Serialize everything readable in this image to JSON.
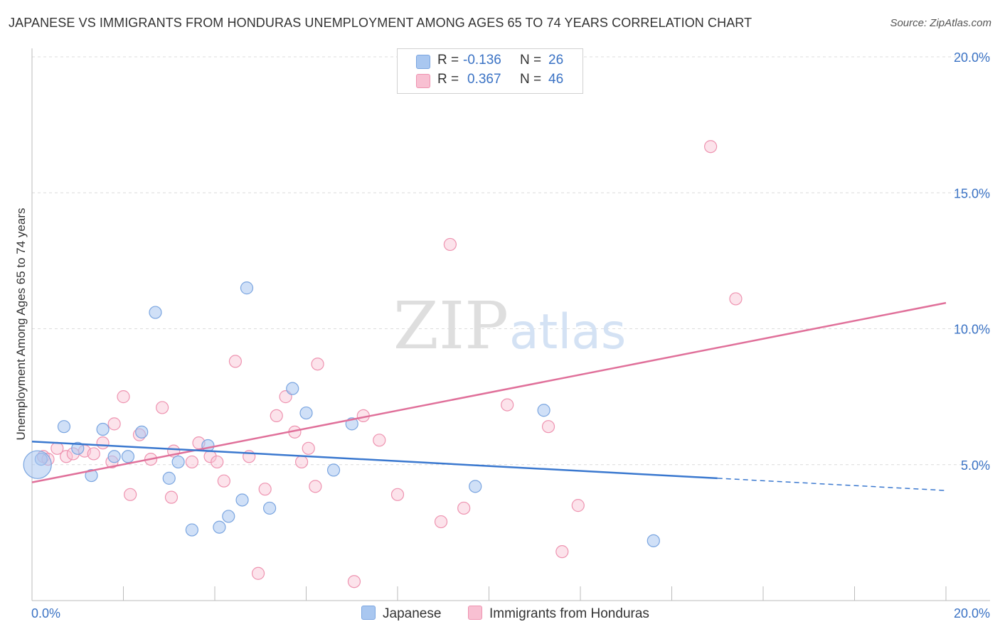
{
  "title": "JAPANESE VS IMMIGRANTS FROM HONDURAS UNEMPLOYMENT AMONG AGES 65 TO 74 YEARS CORRELATION CHART",
  "source": "Source: ZipAtlas.com",
  "watermark": {
    "zip": "ZIP",
    "atlas": "atlas"
  },
  "legend": {
    "rows": [
      {
        "r_label": "R =",
        "r_value": "-0.136",
        "n_label": "N =",
        "n_value": "26",
        "color": "#a9c7f0",
        "border": "#7aa5e0"
      },
      {
        "r_label": "R =",
        "r_value": "0.367",
        "n_label": "N =",
        "n_value": "46",
        "color": "#f8c0d2",
        "border": "#ee93b0"
      }
    ]
  },
  "chart_data": {
    "type": "scatter",
    "title": "JAPANESE VS IMMIGRANTS FROM HONDURAS UNEMPLOYMENT AMONG AGES 65 TO 74 YEARS CORRELATION CHART",
    "xlabel": "",
    "ylabel": "Unemployment Among Ages 65 to 74 years",
    "xlim": [
      0,
      20
    ],
    "ylim": [
      0,
      20
    ],
    "x_tick_labels": [
      "0.0%",
      "20.0%"
    ],
    "y_ticks": [
      5,
      10,
      15,
      20
    ],
    "y_tick_labels": [
      "5.0%",
      "10.0%",
      "15.0%",
      "20.0%"
    ],
    "grid": true,
    "legend_position": "top-center",
    "series": [
      {
        "name": "Japanese",
        "color": "#a9c7f0",
        "line_color": "#3a78cf",
        "points": [
          [
            0.2,
            5.2
          ],
          [
            0.7,
            6.4
          ],
          [
            1.0,
            5.6
          ],
          [
            1.3,
            4.6
          ],
          [
            1.55,
            6.3
          ],
          [
            1.8,
            5.3
          ],
          [
            2.1,
            5.3
          ],
          [
            2.4,
            6.2
          ],
          [
            2.7,
            10.6
          ],
          [
            3.0,
            4.5
          ],
          [
            3.2,
            5.1
          ],
          [
            3.5,
            2.6
          ],
          [
            3.85,
            5.7
          ],
          [
            4.1,
            2.7
          ],
          [
            4.3,
            3.1
          ],
          [
            4.6,
            3.7
          ],
          [
            4.7,
            11.5
          ],
          [
            5.2,
            3.4
          ],
          [
            5.7,
            7.8
          ],
          [
            6.0,
            6.9
          ],
          [
            6.6,
            4.8
          ],
          [
            7.0,
            6.5
          ],
          [
            9.7,
            4.2
          ],
          [
            11.2,
            7.0
          ],
          [
            13.6,
            2.2
          ],
          [
            0.12,
            5.0
          ]
        ],
        "point_sizes": [
          1,
          1,
          1,
          1,
          1,
          1,
          1,
          1,
          1,
          1,
          1,
          1,
          1,
          1,
          1,
          1,
          1,
          1,
          1,
          1,
          1,
          1,
          1,
          1,
          1,
          2.3
        ],
        "trend": {
          "x0": 0,
          "y0": 5.85,
          "x1": 15.0,
          "y1": 4.5,
          "dash_to_x": 20.0,
          "dash_to_y": 4.05
        }
      },
      {
        "name": "Immigrants from Honduras",
        "color": "#f8c0d2",
        "line_color": "#e0709a",
        "points": [
          [
            0.25,
            5.3
          ],
          [
            0.55,
            5.6
          ],
          [
            0.75,
            5.3
          ],
          [
            1.15,
            5.5
          ],
          [
            1.35,
            5.4
          ],
          [
            1.55,
            5.8
          ],
          [
            1.75,
            5.1
          ],
          [
            1.8,
            6.5
          ],
          [
            2.0,
            7.5
          ],
          [
            2.15,
            3.9
          ],
          [
            2.35,
            6.1
          ],
          [
            2.6,
            5.2
          ],
          [
            2.85,
            7.1
          ],
          [
            3.05,
            3.8
          ],
          [
            3.1,
            5.5
          ],
          [
            3.5,
            5.1
          ],
          [
            3.65,
            5.8
          ],
          [
            3.9,
            5.3
          ],
          [
            4.05,
            5.1
          ],
          [
            4.2,
            4.4
          ],
          [
            4.45,
            8.8
          ],
          [
            4.75,
            5.3
          ],
          [
            4.95,
            1.0
          ],
          [
            5.1,
            4.1
          ],
          [
            5.35,
            6.8
          ],
          [
            5.55,
            7.5
          ],
          [
            5.75,
            6.2
          ],
          [
            5.9,
            5.1
          ],
          [
            6.05,
            5.6
          ],
          [
            6.2,
            4.2
          ],
          [
            6.25,
            8.7
          ],
          [
            7.05,
            0.7
          ],
          [
            7.25,
            6.8
          ],
          [
            7.6,
            5.9
          ],
          [
            8.0,
            3.9
          ],
          [
            8.95,
            2.9
          ],
          [
            9.15,
            13.1
          ],
          [
            9.45,
            3.4
          ],
          [
            10.4,
            7.2
          ],
          [
            11.3,
            6.4
          ],
          [
            11.6,
            1.8
          ],
          [
            11.95,
            3.5
          ],
          [
            14.85,
            16.7
          ],
          [
            15.4,
            11.1
          ],
          [
            0.35,
            5.2
          ],
          [
            0.9,
            5.4
          ]
        ],
        "trend": {
          "x0": 0,
          "y0": 4.35,
          "x1": 20.0,
          "y1": 10.95
        }
      }
    ]
  }
}
